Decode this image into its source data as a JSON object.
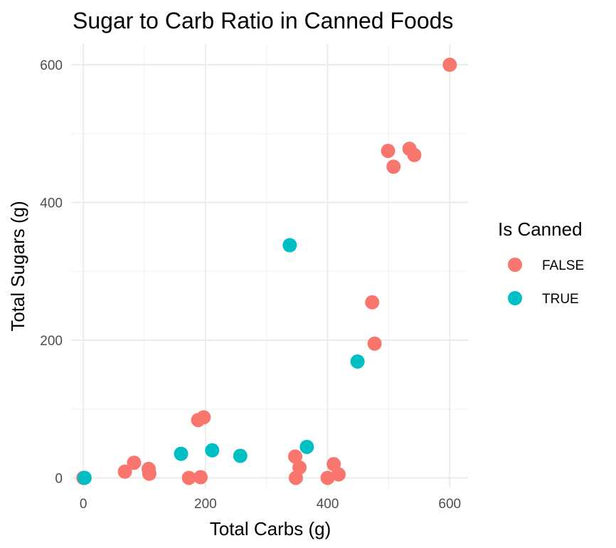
{
  "chart_data": {
    "type": "scatter",
    "title": "Sugar to Carb Ratio in Canned Foods",
    "xlabel": "Total Carbs (g)",
    "ylabel": "Total Sugars (g)",
    "xlim": [
      -20,
      630
    ],
    "ylim": [
      -15,
      630
    ],
    "x_ticks": [
      0,
      200,
      400,
      600
    ],
    "y_ticks": [
      0,
      200,
      400,
      600
    ],
    "x_tick_labels": [
      "0",
      "200",
      "400",
      "600"
    ],
    "y_tick_labels": [
      "0",
      "200",
      "400",
      "600"
    ],
    "grid": true,
    "legend": {
      "title": "Is Canned",
      "position": "right"
    },
    "series": [
      {
        "name": "FALSE",
        "color": "#F8766D",
        "points": [
          {
            "x": 0,
            "y": 0
          },
          {
            "x": 68,
            "y": 9
          },
          {
            "x": 83,
            "y": 22
          },
          {
            "x": 107,
            "y": 13
          },
          {
            "x": 108,
            "y": 6
          },
          {
            "x": 173,
            "y": 0
          },
          {
            "x": 188,
            "y": 84
          },
          {
            "x": 192,
            "y": 1
          },
          {
            "x": 197,
            "y": 88
          },
          {
            "x": 347,
            "y": 31
          },
          {
            "x": 348,
            "y": 0
          },
          {
            "x": 354,
            "y": 15
          },
          {
            "x": 400,
            "y": 0
          },
          {
            "x": 410,
            "y": 20
          },
          {
            "x": 418,
            "y": 5
          },
          {
            "x": 473,
            "y": 255
          },
          {
            "x": 477,
            "y": 195
          },
          {
            "x": 499,
            "y": 475
          },
          {
            "x": 508,
            "y": 452
          },
          {
            "x": 534,
            "y": 478
          },
          {
            "x": 542,
            "y": 469
          },
          {
            "x": 600,
            "y": 600
          }
        ]
      },
      {
        "name": "TRUE",
        "color": "#00BFC4",
        "points": [
          {
            "x": 2,
            "y": 0
          },
          {
            "x": 160,
            "y": 35
          },
          {
            "x": 211,
            "y": 40
          },
          {
            "x": 257,
            "y": 32
          },
          {
            "x": 338,
            "y": 338
          },
          {
            "x": 366,
            "y": 45
          },
          {
            "x": 449,
            "y": 169
          }
        ]
      }
    ]
  }
}
